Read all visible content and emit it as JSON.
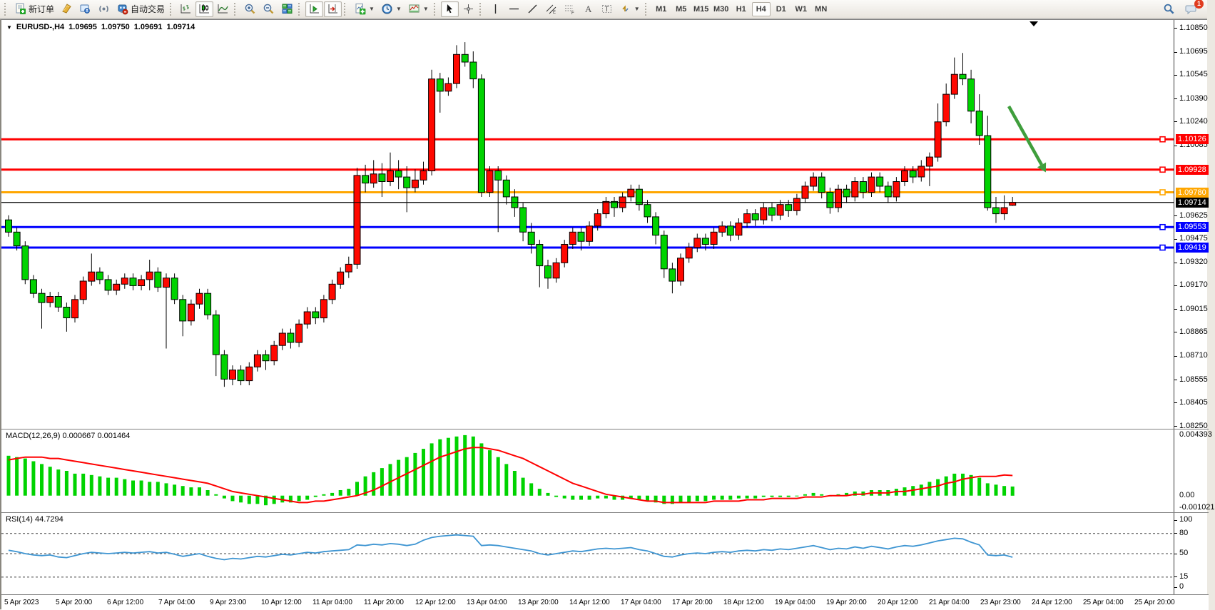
{
  "toolbar": {
    "new_order_label": "新订单",
    "autotrading_label": "自动交易",
    "timeframes": {
      "items": [
        "M1",
        "M5",
        "M15",
        "M30",
        "H1",
        "H4",
        "D1",
        "W1",
        "MN"
      ],
      "active": "H4"
    },
    "notification_badge": "1"
  },
  "chart": {
    "symbol_period": "EURUSD-,H4",
    "open": "1.09695",
    "high": "1.09750",
    "low": "1.09691",
    "close": "1.09714"
  },
  "indicators": {
    "macd": {
      "label": "MACD(12,26,9)",
      "main_value": "0.000667",
      "signal_value": "0.001464"
    },
    "rsi": {
      "label": "RSI(14)",
      "value": "44.7294"
    }
  },
  "chart_data": {
    "type": "candlestick",
    "symbol": "EURUSD-",
    "timeframe": "H4",
    "bull_color": "#ff0800",
    "bear_color": "#00d300",
    "wick_color": "#000000",
    "ylim": [
      1.08236,
      1.10905
    ],
    "price_ticks": [
      "1.10850",
      "1.10695",
      "1.10545",
      "1.10390",
      "1.10240",
      "1.10085",
      "1.09625",
      "1.09475",
      "1.09320",
      "1.09170",
      "1.09015",
      "1.08865",
      "1.08710",
      "1.08555",
      "1.08405",
      "1.08250"
    ],
    "hlines": [
      {
        "price": 1.10126,
        "label": "1.10126",
        "color": "#ff0000",
        "width": 3,
        "handle": true
      },
      {
        "price": 1.09928,
        "label": "1.09928",
        "color": "#ff0000",
        "width": 3,
        "handle": true
      },
      {
        "price": 1.0978,
        "label": "1.09780",
        "color": "#ffa600",
        "width": 3,
        "handle": true
      },
      {
        "price": 1.09714,
        "label": "1.09714",
        "color": "#000000",
        "width": 1,
        "handle": false,
        "current": true
      },
      {
        "price": 1.09553,
        "label": "1.09553",
        "color": "#0000ff",
        "width": 3,
        "handle": true
      },
      {
        "price": 1.09419,
        "label": "1.09419",
        "color": "#0000ff",
        "width": 3,
        "handle": true
      }
    ],
    "trend_arrow": {
      "x1": 1412,
      "y1": 121,
      "x2": 1458,
      "y2": 203,
      "color": "#3f9e3c"
    },
    "shift_marker_x": 1447,
    "time_labels": [
      "5 Apr 2023",
      "5 Apr 20:00",
      "6 Apr 12:00",
      "7 Apr 04:00",
      "9 Apr 23:00",
      "10 Apr 12:00",
      "11 Apr 04:00",
      "11 Apr 20:00",
      "12 Apr 12:00",
      "13 Apr 04:00",
      "13 Apr 20:00",
      "14 Apr 12:00",
      "17 Apr 04:00",
      "17 Apr 20:00",
      "18 Apr 12:00",
      "19 Apr 04:00",
      "19 Apr 20:00",
      "20 Apr 12:00",
      "21 Apr 04:00",
      "23 Apr 23:00",
      "24 Apr 12:00",
      "25 Apr 04:00",
      "25 Apr 20:00"
    ],
    "candles": [
      [
        1.096,
        1.0963,
        1.0949,
        1.0952
      ],
      [
        1.0952,
        1.0955,
        1.094,
        1.0943
      ],
      [
        1.0943,
        1.0946,
        1.0918,
        1.0921
      ],
      [
        1.0921,
        1.0924,
        1.0909,
        1.0912
      ],
      [
        1.0912,
        1.0915,
        1.0889,
        1.0906
      ],
      [
        1.0906,
        1.0913,
        1.0903,
        1.091
      ],
      [
        1.091,
        1.0913,
        1.09,
        1.0903
      ],
      [
        1.0903,
        1.0906,
        1.0887,
        1.0896
      ],
      [
        1.0896,
        1.0911,
        1.0893,
        1.0908
      ],
      [
        1.0908,
        1.0923,
        1.0905,
        1.092
      ],
      [
        1.092,
        1.0938,
        1.0917,
        1.0926
      ],
      [
        1.0926,
        1.0929,
        1.0918,
        1.0921
      ],
      [
        1.0921,
        1.0924,
        1.0911,
        1.0914
      ],
      [
        1.0914,
        1.0921,
        1.0911,
        1.0918
      ],
      [
        1.0918,
        1.0925,
        1.0915,
        1.0922
      ],
      [
        1.0922,
        1.0925,
        1.0914,
        1.0917
      ],
      [
        1.0917,
        1.0924,
        1.0914,
        1.0921
      ],
      [
        1.0921,
        1.0934,
        1.0914,
        1.0926
      ],
      [
        1.0926,
        1.0929,
        1.0913,
        1.0916
      ],
      [
        1.0916,
        1.0925,
        1.0876,
        1.0922
      ],
      [
        1.0922,
        1.0925,
        1.0905,
        1.0908
      ],
      [
        1.0908,
        1.0911,
        1.0884,
        1.0894
      ],
      [
        1.0894,
        1.0908,
        1.0891,
        1.0905
      ],
      [
        1.0905,
        1.0915,
        1.0902,
        1.0912
      ],
      [
        1.0912,
        1.0915,
        1.0895,
        1.0898
      ],
      [
        1.0898,
        1.0901,
        1.0858,
        1.0872
      ],
      [
        1.0872,
        1.0875,
        1.0851,
        1.0856
      ],
      [
        1.0856,
        1.0865,
        1.0852,
        1.0862
      ],
      [
        1.0862,
        1.0865,
        1.0852,
        1.0855
      ],
      [
        1.0855,
        1.0867,
        1.0852,
        1.0864
      ],
      [
        1.0864,
        1.0875,
        1.0861,
        1.0872
      ],
      [
        1.0872,
        1.0875,
        1.0862,
        1.0868
      ],
      [
        1.0868,
        1.0881,
        1.0865,
        1.0878
      ],
      [
        1.0878,
        1.0889,
        1.0875,
        1.0886
      ],
      [
        1.0886,
        1.0889,
        1.0876,
        1.088
      ],
      [
        1.088,
        1.0895,
        1.0877,
        1.0892
      ],
      [
        1.0892,
        1.0903,
        1.0889,
        1.09
      ],
      [
        1.09,
        1.0903,
        1.0892,
        1.0896
      ],
      [
        1.0896,
        1.0911,
        1.0893,
        1.0908
      ],
      [
        1.0908,
        1.0921,
        1.0905,
        1.0918
      ],
      [
        1.0918,
        1.0929,
        1.0915,
        1.0926
      ],
      [
        1.0926,
        1.0936,
        1.0922,
        1.0931
      ],
      [
        1.0931,
        1.0994,
        1.0928,
        1.0989
      ],
      [
        1.0989,
        1.0996,
        1.0978,
        1.0984
      ],
      [
        1.0984,
        1.0999,
        1.0981,
        1.099
      ],
      [
        1.099,
        1.0997,
        1.0975,
        1.0985
      ],
      [
        1.0985,
        1.1004,
        1.0982,
        1.0992
      ],
      [
        1.0992,
        1.0999,
        1.098,
        1.0988
      ],
      [
        1.0988,
        1.0995,
        1.0965,
        1.0981
      ],
      [
        1.0981,
        1.0993,
        1.0978,
        1.0986
      ],
      [
        1.0986,
        1.0998,
        1.0983,
        1.0992
      ],
      [
        1.0992,
        1.1058,
        1.0989,
        1.1052
      ],
      [
        1.1052,
        1.1056,
        1.103,
        1.1044
      ],
      [
        1.1044,
        1.1053,
        1.1041,
        1.1049
      ],
      [
        1.1049,
        1.1074,
        1.1046,
        1.1068
      ],
      [
        1.1068,
        1.1076,
        1.106,
        1.1063
      ],
      [
        1.1063,
        1.107,
        1.1046,
        1.1052
      ],
      [
        1.1052,
        1.1055,
        1.0975,
        1.0978
      ],
      [
        1.0978,
        1.0995,
        1.0975,
        1.0992
      ],
      [
        1.0992,
        1.0995,
        1.0952,
        1.0986
      ],
      [
        1.0986,
        1.0989,
        1.097,
        1.0975
      ],
      [
        1.0975,
        1.098,
        1.0962,
        1.0968
      ],
      [
        1.0968,
        1.0971,
        1.0946,
        1.0952
      ],
      [
        1.0952,
        1.0958,
        1.0938,
        1.0944
      ],
      [
        1.0944,
        1.0947,
        1.0916,
        1.093
      ],
      [
        1.093,
        1.0934,
        1.0915,
        1.0922
      ],
      [
        1.0922,
        1.0935,
        1.0919,
        1.0932
      ],
      [
        1.0932,
        1.0947,
        1.0929,
        1.0944
      ],
      [
        1.0944,
        1.0955,
        1.0941,
        1.0952
      ],
      [
        1.0952,
        1.0955,
        1.094,
        1.0946
      ],
      [
        1.0946,
        1.0959,
        1.0943,
        1.0956
      ],
      [
        1.0956,
        1.0967,
        1.0953,
        1.0964
      ],
      [
        1.0964,
        1.0975,
        1.0961,
        1.0972
      ],
      [
        1.0972,
        1.0975,
        1.0962,
        1.0968
      ],
      [
        1.0968,
        1.0978,
        1.0965,
        1.0975
      ],
      [
        1.0975,
        1.0983,
        1.0972,
        1.098
      ],
      [
        1.098,
        1.0983,
        1.0966,
        1.097
      ],
      [
        1.097,
        1.0973,
        1.0958,
        1.0962
      ],
      [
        1.0962,
        1.0965,
        1.0944,
        1.095
      ],
      [
        1.095,
        1.0953,
        1.0922,
        1.0928
      ],
      [
        1.0928,
        1.0932,
        1.0912,
        1.092
      ],
      [
        1.092,
        1.0938,
        1.0917,
        1.0935
      ],
      [
        1.0935,
        1.0945,
        1.0932,
        1.0942
      ],
      [
        1.0942,
        1.0951,
        1.0939,
        1.0948
      ],
      [
        1.0948,
        1.0951,
        1.094,
        1.0944
      ],
      [
        1.0944,
        1.0955,
        1.0941,
        1.0952
      ],
      [
        1.0952,
        1.0959,
        1.0949,
        1.0956
      ],
      [
        1.0956,
        1.0959,
        1.0946,
        1.095
      ],
      [
        1.095,
        1.0961,
        1.0947,
        1.0958
      ],
      [
        1.0958,
        1.0967,
        1.0955,
        1.0964
      ],
      [
        1.0964,
        1.0967,
        1.0956,
        1.096
      ],
      [
        1.096,
        1.0971,
        1.0957,
        1.0968
      ],
      [
        1.0968,
        1.0971,
        1.0959,
        1.0963
      ],
      [
        1.0963,
        1.0973,
        1.096,
        1.097
      ],
      [
        1.097,
        1.0973,
        1.0962,
        1.0966
      ],
      [
        1.0966,
        1.0977,
        1.0963,
        1.0974
      ],
      [
        1.0974,
        1.0985,
        1.0971,
        1.0982
      ],
      [
        1.0982,
        1.0991,
        1.0979,
        1.0988
      ],
      [
        1.0988,
        1.0991,
        1.0974,
        1.0978
      ],
      [
        1.0978,
        1.0981,
        1.0964,
        1.0968
      ],
      [
        1.0968,
        1.0983,
        1.0965,
        1.098
      ],
      [
        1.098,
        1.0983,
        1.0971,
        1.0975
      ],
      [
        1.0975,
        1.0988,
        1.0972,
        1.0985
      ],
      [
        1.0985,
        1.0988,
        1.0974,
        1.0978
      ],
      [
        1.0978,
        1.0991,
        1.0975,
        1.0988
      ],
      [
        1.0988,
        1.0991,
        1.0978,
        1.0982
      ],
      [
        1.0982,
        1.0985,
        1.0971,
        1.0975
      ],
      [
        1.0975,
        1.0988,
        1.0972,
        1.0985
      ],
      [
        1.0985,
        1.0995,
        1.0982,
        1.0992
      ],
      [
        1.0992,
        1.0995,
        1.0984,
        1.0988
      ],
      [
        1.0988,
        1.0999,
        1.0985,
        1.0995
      ],
      [
        1.0995,
        1.1004,
        1.0982,
        1.1001
      ],
      [
        1.1001,
        1.1036,
        1.0998,
        1.1024
      ],
      [
        1.1024,
        1.1049,
        1.1021,
        1.1042
      ],
      [
        1.1042,
        1.1066,
        1.1039,
        1.1055
      ],
      [
        1.1055,
        1.1069,
        1.1048,
        1.1052
      ],
      [
        1.1052,
        1.1058,
        1.1023,
        1.1031
      ],
      [
        1.1031,
        1.1042,
        1.1009,
        1.1015
      ],
      [
        1.1015,
        1.1028,
        1.0966,
        1.0968
      ],
      [
        1.0968,
        1.0975,
        1.0958,
        1.0964
      ],
      [
        1.0964,
        1.0976,
        1.096,
        1.0968
      ],
      [
        1.09695,
        1.0975,
        1.09691,
        1.09714
      ]
    ],
    "macd": {
      "hist_color": "#00d300",
      "signal_color": "#ff0000",
      "ylim": [
        -0.001021,
        0.004393
      ],
      "axis_labels": [
        "0.004393",
        "0.00",
        "-0.001021"
      ],
      "histogram": [
        0.0029,
        0.0028,
        0.0027,
        0.0025,
        0.0023,
        0.0021,
        0.0019,
        0.0018,
        0.0016,
        0.0016,
        0.0015,
        0.0014,
        0.0013,
        0.0013,
        0.0012,
        0.0011,
        0.0011,
        0.001,
        0.001,
        0.0009,
        0.0008,
        0.0007,
        0.0006,
        0.0006,
        0.0004,
        0.0001,
        -0.0002,
        -0.0004,
        -0.0005,
        -0.0006,
        -0.0006,
        -0.0007,
        -0.0006,
        -0.0005,
        -0.0005,
        -0.0004,
        -0.0003,
        -0.0001,
        0.0001,
        0.0002,
        0.0004,
        0.0005,
        0.001,
        0.0014,
        0.0017,
        0.002,
        0.0023,
        0.0026,
        0.0028,
        0.0031,
        0.0034,
        0.0038,
        0.0041,
        0.0042,
        0.0043,
        0.0044,
        0.0043,
        0.0038,
        0.0033,
        0.0028,
        0.0023,
        0.0018,
        0.0013,
        0.0009,
        0.0005,
        0.0002,
        -0.0001,
        -0.0002,
        -0.0003,
        -0.0003,
        -0.0003,
        -0.0002,
        -0.0002,
        -0.0003,
        -0.0003,
        -0.0002,
        -0.0003,
        -0.0004,
        -0.0005,
        -0.0006,
        -0.0006,
        -0.0005,
        -0.0005,
        -0.0004,
        -0.0004,
        -0.0003,
        -0.0003,
        -0.0003,
        -0.0002,
        -0.0002,
        -0.0002,
        -0.0001,
        -0.0001,
        -0.0001,
        -0.0001,
        0.0,
        0.0001,
        0.0002,
        0.0001,
        0.0,
        0.0001,
        0.0002,
        0.0003,
        0.0003,
        0.0004,
        0.0004,
        0.0004,
        0.0005,
        0.0006,
        0.0007,
        0.0008,
        0.001,
        0.0012,
        0.0014,
        0.0016,
        0.0016,
        0.0015,
        0.0013,
        0.0009,
        0.0008,
        0.0007,
        0.000667
      ],
      "signal": [
        0.0026,
        0.0027,
        0.0028,
        0.0028,
        0.0028,
        0.0027,
        0.0027,
        0.0026,
        0.0025,
        0.0024,
        0.0023,
        0.0022,
        0.0021,
        0.002,
        0.0019,
        0.0018,
        0.0017,
        0.0016,
        0.0015,
        0.0014,
        0.0013,
        0.0012,
        0.0011,
        0.001,
        0.0009,
        0.0007,
        0.0005,
        0.0003,
        0.0002,
        0.0001,
        0.0,
        -0.0001,
        -0.0002,
        -0.0003,
        -0.0004,
        -0.0005,
        -0.0005,
        -0.0004,
        -0.0004,
        -0.0003,
        -0.0002,
        -0.0001,
        0.0,
        0.0002,
        0.0004,
        0.0007,
        0.001,
        0.0013,
        0.0016,
        0.0019,
        0.0022,
        0.0025,
        0.0028,
        0.003,
        0.0032,
        0.0034,
        0.0035,
        0.0035,
        0.0034,
        0.0033,
        0.0031,
        0.0029,
        0.0027,
        0.0024,
        0.0021,
        0.0018,
        0.0015,
        0.0012,
        0.0009,
        0.0007,
        0.0005,
        0.0003,
        0.0001,
        0.0,
        -0.0001,
        -0.0002,
        -0.0003,
        -0.0004,
        -0.0004,
        -0.0005,
        -0.0005,
        -0.0005,
        -0.0005,
        -0.0005,
        -0.0005,
        -0.0004,
        -0.0004,
        -0.0004,
        -0.0004,
        -0.0003,
        -0.0003,
        -0.0003,
        -0.0002,
        -0.0002,
        -0.0002,
        -0.0002,
        -0.0001,
        -0.0001,
        -0.0001,
        0.0,
        0.0,
        0.0,
        0.0001,
        0.0001,
        0.0002,
        0.0002,
        0.0002,
        0.0003,
        0.0003,
        0.0004,
        0.0005,
        0.0006,
        0.0007,
        0.0009,
        0.001,
        0.0012,
        0.0013,
        0.0014,
        0.0014,
        0.0014,
        0.0015,
        0.001464
      ]
    },
    "rsi": {
      "color": "#3e95d2",
      "ylim": [
        0,
        100
      ],
      "levels": [
        80,
        50,
        15
      ],
      "axis_labels": [
        "100",
        "80",
        "50",
        "15",
        "0"
      ],
      "values": [
        55,
        53,
        50,
        48,
        47,
        48,
        45,
        44,
        47,
        50,
        52,
        51,
        50,
        51,
        52,
        51,
        52,
        53,
        51,
        52,
        49,
        46,
        48,
        50,
        46,
        43,
        41,
        43,
        42,
        44,
        46,
        45,
        47,
        49,
        48,
        50,
        52,
        51,
        53,
        54,
        55,
        56,
        63,
        62,
        64,
        63,
        65,
        64,
        62,
        64,
        70,
        74,
        76,
        77,
        78,
        77,
        76,
        62,
        63,
        62,
        60,
        58,
        56,
        54,
        50,
        48,
        50,
        52,
        54,
        53,
        55,
        57,
        58,
        57,
        58,
        59,
        56,
        54,
        50,
        46,
        45,
        48,
        50,
        51,
        50,
        52,
        53,
        52,
        54,
        55,
        54,
        56,
        55,
        57,
        56,
        58,
        60,
        62,
        59,
        56,
        58,
        57,
        60,
        58,
        61,
        59,
        57,
        60,
        62,
        61,
        63,
        66,
        69,
        71,
        73,
        72,
        67,
        63,
        48,
        47,
        48,
        44.7294
      ]
    }
  }
}
